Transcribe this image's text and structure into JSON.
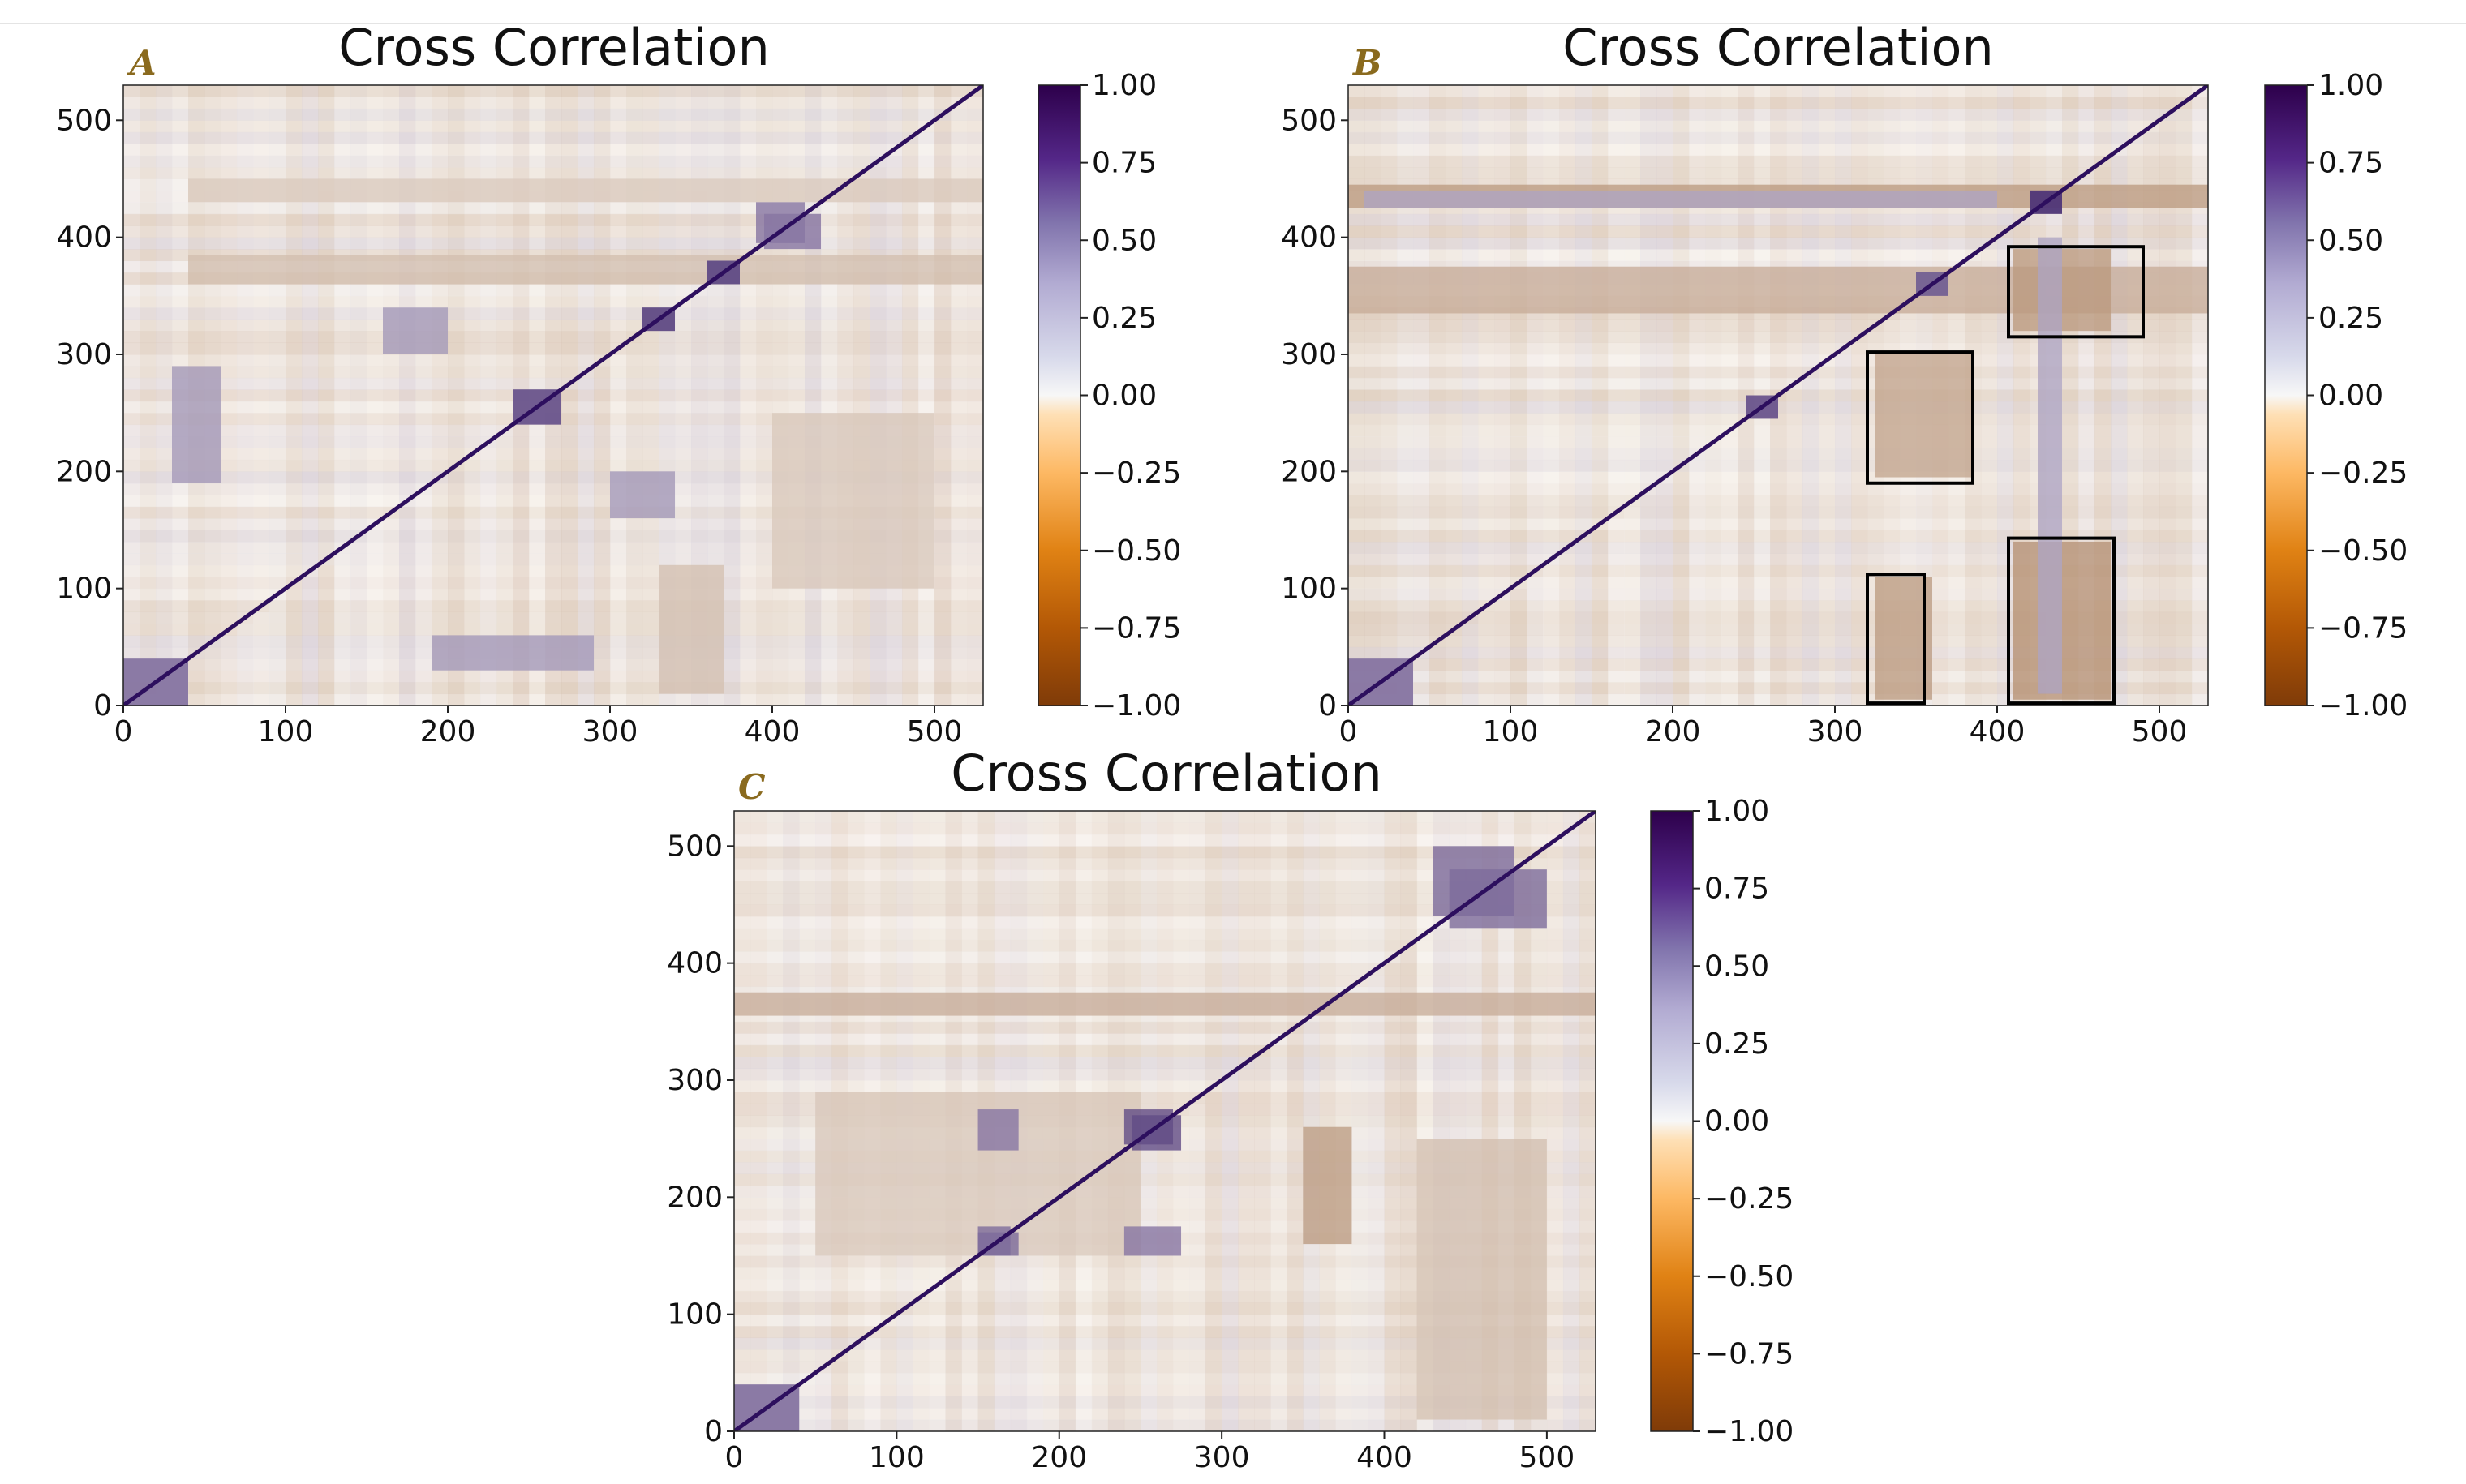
{
  "chart_data": [
    {
      "type": "heatmap",
      "panel": "A",
      "title": "Cross Correlation",
      "xlabel": "",
      "ylabel": "",
      "xlim": [
        0,
        530
      ],
      "ylim": [
        0,
        530
      ],
      "xticks": [
        0,
        100,
        200,
        300,
        400,
        500
      ],
      "yticks": [
        0,
        100,
        200,
        300,
        400,
        500
      ],
      "colorbar": {
        "min": -1.0,
        "max": 1.0,
        "ticks": [
          "1.00",
          "0.75",
          "0.50",
          "0.25",
          "0.00",
          "−0.25",
          "−0.50",
          "−0.75",
          "−1.00"
        ]
      },
      "colormap": {
        "positive": "#2d0f5e",
        "zero": "#f7f7f7",
        "negative": "#7f3b08"
      },
      "diagonal_value": 1.0,
      "positive_blocks": [
        {
          "x": [
            240,
            270
          ],
          "y": [
            240,
            270
          ],
          "value": 0.65
        },
        {
          "x": [
            360,
            380
          ],
          "y": [
            360,
            380
          ],
          "value": 0.7
        },
        {
          "x": [
            320,
            340
          ],
          "y": [
            320,
            340
          ],
          "value": 0.7
        },
        {
          "x": [
            390,
            420
          ],
          "y": [
            395,
            430
          ],
          "value": 0.5
        },
        {
          "x": [
            0,
            40
          ],
          "y": [
            0,
            40
          ],
          "value": 0.5
        },
        {
          "x": [
            30,
            60
          ],
          "y": [
            190,
            290
          ],
          "value": 0.35
        },
        {
          "x": [
            300,
            340
          ],
          "y": [
            160,
            200
          ],
          "value": 0.35
        }
      ],
      "negative_blocks": [
        {
          "x": [
            40,
            530
          ],
          "y": [
            360,
            385
          ],
          "value": -0.25
        },
        {
          "x": [
            40,
            530
          ],
          "y": [
            430,
            450
          ],
          "value": -0.2
        },
        {
          "x": [
            400,
            500
          ],
          "y": [
            100,
            250
          ],
          "value": -0.2
        },
        {
          "x": [
            330,
            370
          ],
          "y": [
            10,
            120
          ],
          "value": -0.25
        }
      ],
      "boxes": []
    },
    {
      "type": "heatmap",
      "panel": "B",
      "title": "Cross Correlation",
      "xlabel": "",
      "ylabel": "",
      "xlim": [
        0,
        530
      ],
      "ylim": [
        0,
        530
      ],
      "xticks": [
        0,
        100,
        200,
        300,
        400,
        500
      ],
      "yticks": [
        0,
        100,
        200,
        300,
        400,
        500
      ],
      "colorbar": {
        "min": -1.0,
        "max": 1.0,
        "ticks": [
          "1.00",
          "0.75",
          "0.50",
          "0.25",
          "0.00",
          "−0.25",
          "−0.50",
          "−0.75",
          "−1.00"
        ]
      },
      "colormap": {
        "positive": "#2d0f5e",
        "zero": "#f7f7f7",
        "negative": "#7f3b08"
      },
      "diagonal_value": 1.0,
      "positive_blocks": [
        {
          "x": [
            420,
            440
          ],
          "y": [
            420,
            440
          ],
          "value": 0.8
        },
        {
          "x": [
            350,
            370
          ],
          "y": [
            350,
            370
          ],
          "value": 0.6
        },
        {
          "x": [
            245,
            265
          ],
          "y": [
            245,
            265
          ],
          "value": 0.65
        },
        {
          "x": [
            425,
            440
          ],
          "y": [
            10,
            400
          ],
          "value": 0.3
        },
        {
          "x": [
            0,
            40
          ],
          "y": [
            0,
            40
          ],
          "value": 0.5
        }
      ],
      "negative_blocks": [
        {
          "x": [
            0,
            530
          ],
          "y": [
            425,
            445
          ],
          "value": -0.45
        },
        {
          "x": [
            0,
            530
          ],
          "y": [
            335,
            375
          ],
          "value": -0.35
        },
        {
          "x": [
            410,
            470
          ],
          "y": [
            320,
            390
          ],
          "value": -0.45
        },
        {
          "x": [
            325,
            385
          ],
          "y": [
            195,
            300
          ],
          "value": -0.4
        },
        {
          "x": [
            325,
            360
          ],
          "y": [
            5,
            110
          ],
          "value": -0.45
        },
        {
          "x": [
            410,
            470
          ],
          "y": [
            5,
            140
          ],
          "value": -0.5
        }
      ],
      "boxes": [
        {
          "x0": 407,
          "y0": 315,
          "x1": 490,
          "y1": 392
        },
        {
          "x0": 320,
          "y0": 190,
          "x1": 385,
          "y1": 302
        },
        {
          "x0": 320,
          "y0": 2,
          "x1": 355,
          "y1": 112
        },
        {
          "x0": 407,
          "y0": 2,
          "x1": 472,
          "y1": 143
        }
      ]
    },
    {
      "type": "heatmap",
      "panel": "C",
      "title": "Cross Correlation",
      "xlabel": "",
      "ylabel": "",
      "xlim": [
        0,
        530
      ],
      "ylim": [
        0,
        530
      ],
      "xticks": [
        0,
        100,
        200,
        300,
        400,
        500
      ],
      "yticks": [
        0,
        100,
        200,
        300,
        400,
        500
      ],
      "colorbar": {
        "min": -1.0,
        "max": 1.0,
        "ticks": [
          "1.00",
          "0.75",
          "0.50",
          "0.25",
          "0.00",
          "−0.25",
          "−0.50",
          "−0.75",
          "−1.00"
        ]
      },
      "colormap": {
        "positive": "#2d0f5e",
        "zero": "#f7f7f7",
        "negative": "#7f3b08"
      },
      "diagonal_value": 1.0,
      "positive_blocks": [
        {
          "x": [
            240,
            270
          ],
          "y": [
            245,
            275
          ],
          "value": 0.7
        },
        {
          "x": [
            430,
            480
          ],
          "y": [
            440,
            500
          ],
          "value": 0.55
        },
        {
          "x": [
            150,
            170
          ],
          "y": [
            150,
            175
          ],
          "value": 0.55
        },
        {
          "x": [
            150,
            175
          ],
          "y": [
            240,
            275
          ],
          "value": 0.5
        },
        {
          "x": [
            0,
            40
          ],
          "y": [
            0,
            40
          ],
          "value": 0.5
        }
      ],
      "negative_blocks": [
        {
          "x": [
            0,
            530
          ],
          "y": [
            355,
            375
          ],
          "value": -0.35
        },
        {
          "x": [
            350,
            380
          ],
          "y": [
            160,
            260
          ],
          "value": -0.45
        },
        {
          "x": [
            50,
            250
          ],
          "y": [
            150,
            290
          ],
          "value": -0.2
        },
        {
          "x": [
            420,
            500
          ],
          "y": [
            10,
            250
          ],
          "value": -0.25
        }
      ],
      "boxes": []
    }
  ]
}
